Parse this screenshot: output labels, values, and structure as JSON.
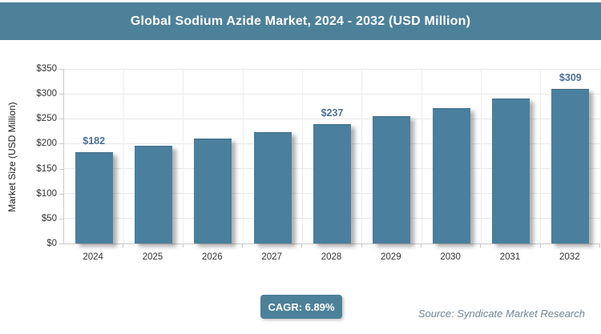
{
  "header": {
    "title": "Global Sodium Azide Market, 2024 - 2032 (USD Million)"
  },
  "footer": {
    "cagr_label": "CAGR: 6.89%",
    "source": "Source: Syndicate Market Research"
  },
  "colors": {
    "header_teal": "#4d8199",
    "bar_teal": "#4a7f9d",
    "bar_top_edge": "#3e6d89",
    "data_label": "#4e6f93",
    "tick_label": "#333333",
    "gridline": "#e8e8e8",
    "axis_line": "#c9c9c9",
    "source_text": "#6f8696",
    "title_text": "#ffffff"
  },
  "chart_data": {
    "type": "bar",
    "title": "Global Sodium Azide Market, 2024 - 2032 (USD Million)",
    "categories": [
      "2024",
      "2025",
      "2026",
      "2027",
      "2028",
      "2029",
      "2030",
      "2031",
      "2032"
    ],
    "values": [
      182,
      195,
      208,
      222,
      237,
      253,
      270,
      289,
      309
    ],
    "data_labels": {
      "2024": "$182",
      "2028": "$237",
      "2032": "$309"
    },
    "xlabel": "",
    "ylabel": "Market Size (USD Million)",
    "ylim": [
      0,
      350
    ],
    "ytick_step": 50,
    "ytick_labels": [
      "$0",
      "$50",
      "$100",
      "$150",
      "$200",
      "$250",
      "$300",
      "$350"
    ],
    "grid": true,
    "legend": false
  }
}
